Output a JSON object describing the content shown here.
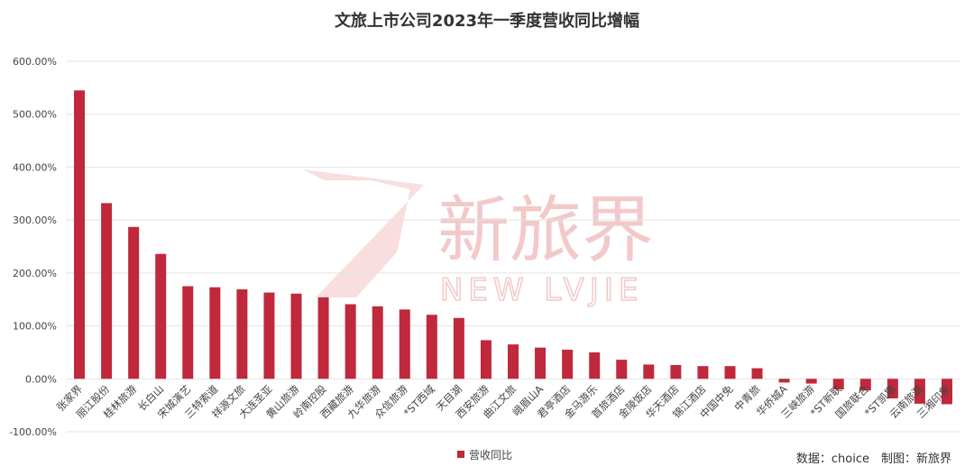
{
  "chart_data": {
    "type": "bar",
    "title": "文旅上市公司2023年一季度营收同比增幅",
    "categories": [
      "张家界",
      "丽江股份",
      "桂林旅游",
      "长白山",
      "宋城演艺",
      "三特索道",
      "祥源文旅",
      "大连圣亚",
      "黄山旅游",
      "岭南控股",
      "西藏旅游",
      "九华旅游",
      "众信旅游",
      "*ST西域",
      "天目湖",
      "西安旅游",
      "曲江文旅",
      "峨眉山A",
      "君亭酒店",
      "金马游乐",
      "首旅酒店",
      "金陵饭店",
      "华天酒店",
      "锦江酒店",
      "中国中免",
      "中青旅",
      "华侨城A",
      "三峡旅游",
      "*ST新联",
      "国旅联合",
      "*ST凯撒",
      "云南旅游",
      "三湘印象"
    ],
    "series": [
      {
        "name": "营收同比",
        "values": [
          545,
          332,
          287,
          236,
          175,
          173,
          169,
          163,
          161,
          154,
          141,
          137,
          131,
          121,
          115,
          73,
          65,
          59,
          55,
          50,
          36,
          27,
          26,
          24,
          24,
          20,
          -7,
          -9,
          -20,
          -22,
          -37,
          -47,
          -48
        ]
      }
    ],
    "ylim": [
      -100,
      600
    ],
    "yticks": [
      "-100.00%",
      "0.00%",
      "100.00%",
      "200.00%",
      "300.00%",
      "400.00%",
      "500.00%",
      "600.00%"
    ],
    "ytick_values": [
      -100,
      0,
      100,
      200,
      300,
      400,
      500,
      600
    ],
    "grid": true,
    "legend": "bottom-center",
    "bar_color": "#c0283c"
  },
  "source_text": "数据：choice　制图：新旅界",
  "watermark": {
    "cn": "新旅界",
    "en": "NEW LVJIE"
  }
}
